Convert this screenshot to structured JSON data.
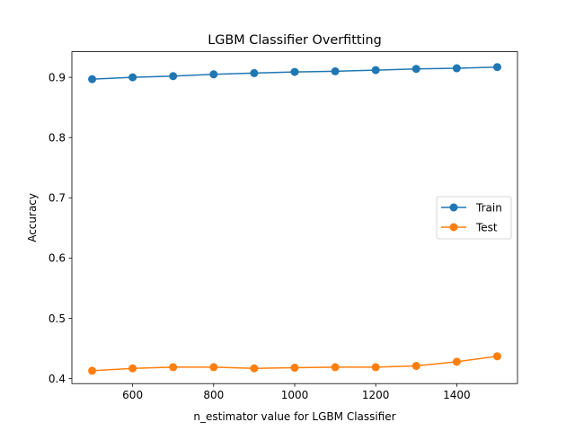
{
  "chart_data": {
    "type": "line",
    "title": "LGBM Classifier Overfitting",
    "xlabel": "n_estimator value for LGBM Classifier",
    "ylabel": "Accuracy",
    "x": [
      500,
      600,
      700,
      800,
      900,
      1000,
      1100,
      1200,
      1300,
      1400,
      1500
    ],
    "xlim": [
      450,
      1550
    ],
    "ylim": [
      0.3917,
      0.9425
    ],
    "xticks": [
      600,
      800,
      1000,
      1200,
      1400
    ],
    "yticks": [
      0.4,
      0.5,
      0.6,
      0.7,
      0.8,
      0.9
    ],
    "xtick_labels": [
      "600",
      "800",
      "1000",
      "1200",
      "1400"
    ],
    "ytick_labels": [
      "0.4",
      "0.5",
      "0.6",
      "0.7",
      "0.8",
      "0.9"
    ],
    "grid": false,
    "legend_position": "center-right",
    "series": [
      {
        "name": "Train",
        "color": "#1f77b4",
        "marker": "circle",
        "values": [
          0.897,
          0.9,
          0.902,
          0.905,
          0.907,
          0.909,
          0.91,
          0.912,
          0.914,
          0.915,
          0.917
        ]
      },
      {
        "name": "Test",
        "color": "#ff7f0e",
        "marker": "circle",
        "values": [
          0.413,
          0.417,
          0.419,
          0.419,
          0.417,
          0.418,
          0.419,
          0.419,
          0.421,
          0.428,
          0.437
        ]
      }
    ]
  }
}
